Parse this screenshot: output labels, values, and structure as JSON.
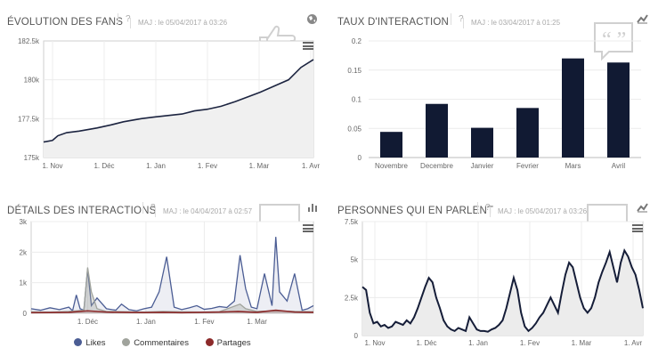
{
  "panels": {
    "fans": {
      "title": "ÉVOLUTION DES FANS",
      "help": "?",
      "maj": "MAJ : le 05/04/2017 à 03:26",
      "icon": "globe-icon"
    },
    "rate": {
      "title": "TAUX D'INTERACTION",
      "help": "?",
      "maj": "MAJ : le 03/04/2017 à 01:25",
      "icon": "trend-icon"
    },
    "details": {
      "title": "DÉTAILS DES INTERACTIONS",
      "help": "?",
      "maj": "MAJ : le 04/04/2017 à 02:57",
      "icon": "bar-chart-icon"
    },
    "talk": {
      "title": "PERSONNES QUI EN PARLENT",
      "help": "?",
      "maj": "MAJ : le 05/04/2017 à 03:26",
      "icon": "trend-icon"
    }
  },
  "legend": [
    {
      "label": "Likes",
      "color": "#4b5d94"
    },
    {
      "label": "Commentaires",
      "color": "#a0a39c"
    },
    {
      "label": "Partages",
      "color": "#8c2a2a"
    }
  ],
  "chart_data": [
    {
      "type": "area",
      "title": "ÉVOLUTION DES FANS",
      "x_ticks": [
        "1. Nov",
        "1. Déc",
        "1. Jan",
        "1. Fev",
        "1. Mar",
        "1. Avr"
      ],
      "y_ticks": [
        "175k",
        "177.5k",
        "180k",
        "182.5k"
      ],
      "ylim": [
        175000,
        182500
      ],
      "x": [
        0,
        5,
        8,
        13,
        20,
        30,
        38,
        45,
        55,
        62,
        70,
        78,
        85,
        92,
        100,
        108,
        115,
        122,
        130,
        138,
        145,
        152
      ],
      "values": [
        176000,
        176100,
        176400,
        176600,
        176700,
        176900,
        177100,
        177300,
        177500,
        177600,
        177700,
        177800,
        178000,
        178100,
        178300,
        178600,
        178900,
        179200,
        179600,
        180000,
        180800,
        181300
      ]
    },
    {
      "type": "bar",
      "title": "TAUX D'INTERACTION",
      "categories": [
        "Novembre",
        "Decembre",
        "Janvier",
        "Fevrier",
        "Mars",
        "Avril"
      ],
      "values": [
        0.044,
        0.092,
        0.051,
        0.085,
        0.17,
        0.163
      ],
      "y_ticks": [
        "0",
        "0.05",
        "0.1",
        "0.15",
        "0.2"
      ],
      "ylim": [
        0,
        0.2
      ],
      "color": "#111a33"
    },
    {
      "type": "line",
      "title": "DÉTAILS DES INTERACTIONS",
      "x_ticks": [
        "1. Déc",
        "1. Jan",
        "1. Fev",
        "1. Mar"
      ],
      "x_tick_days": [
        30,
        61,
        92,
        120
      ],
      "y_ticks": [
        "0",
        "1k",
        "2k",
        "3k"
      ],
      "ylim": [
        0,
        3000
      ],
      "series": [
        {
          "name": "Likes",
          "x": [
            0,
            5,
            10,
            15,
            20,
            22,
            24,
            26,
            28,
            30,
            32,
            35,
            40,
            45,
            48,
            52,
            56,
            60,
            64,
            68,
            72,
            76,
            80,
            84,
            88,
            92,
            96,
            100,
            104,
            108,
            111,
            114,
            117,
            120,
            124,
            128,
            130,
            132,
            136,
            140,
            144,
            147,
            150
          ],
          "values": [
            150,
            100,
            180,
            120,
            200,
            80,
            600,
            150,
            100,
            1450,
            250,
            500,
            150,
            100,
            300,
            120,
            80,
            150,
            200,
            700,
            1850,
            200,
            120,
            180,
            250,
            130,
            160,
            220,
            190,
            400,
            1900,
            800,
            200,
            150,
            1300,
            250,
            2500,
            700,
            400,
            1300,
            100,
            150,
            250
          ]
        },
        {
          "name": "Commentaires",
          "x": [
            0,
            10,
            20,
            24,
            28,
            30,
            32,
            35,
            40,
            50,
            60,
            70,
            80,
            90,
            100,
            111,
            114,
            120,
            130,
            140,
            150
          ],
          "values": [
            50,
            40,
            60,
            80,
            100,
            1500,
            700,
            150,
            60,
            50,
            40,
            60,
            50,
            40,
            50,
            300,
            150,
            60,
            80,
            60,
            50
          ]
        },
        {
          "name": "Partages",
          "x": [
            0,
            10,
            20,
            30,
            40,
            50,
            60,
            70,
            80,
            90,
            100,
            110,
            120,
            130,
            140,
            150
          ],
          "values": [
            20,
            25,
            30,
            80,
            40,
            30,
            25,
            30,
            20,
            30,
            40,
            60,
            30,
            100,
            40,
            30
          ]
        }
      ]
    },
    {
      "type": "area",
      "title": "PERSONNES QUI EN PARLENT",
      "x_ticks": [
        "1. Nov",
        "1. Déc",
        "1. Jan",
        "1. Fev",
        "1. Mar",
        "1. Avr"
      ],
      "y_ticks": [
        "0",
        "2.5k",
        "5k",
        "7.5k"
      ],
      "ylim": [
        0,
        7500
      ],
      "x": [
        0,
        2,
        4,
        6,
        8,
        10,
        12,
        14,
        16,
        18,
        20,
        22,
        24,
        26,
        28,
        30,
        32,
        34,
        36,
        38,
        40,
        42,
        44,
        46,
        48,
        50,
        52,
        54,
        56,
        58,
        60,
        62,
        64,
        66,
        68,
        70,
        72,
        74,
        76,
        78,
        80,
        82,
        84,
        86,
        88,
        90,
        92,
        94,
        96,
        98,
        100,
        102,
        104,
        106,
        108,
        110,
        112,
        114,
        116,
        118,
        120,
        122,
        124,
        126,
        128,
        130,
        132,
        134,
        136,
        138,
        140,
        142,
        144,
        146,
        148,
        150,
        152
      ],
      "values": [
        3200,
        3000,
        1500,
        800,
        900,
        600,
        700,
        500,
        600,
        900,
        800,
        700,
        1000,
        800,
        1200,
        1800,
        2500,
        3200,
        3800,
        3500,
        2500,
        1800,
        1000,
        600,
        400,
        300,
        500,
        400,
        300,
        1200,
        800,
        400,
        300,
        300,
        250,
        400,
        500,
        700,
        1000,
        1800,
        2800,
        3800,
        3000,
        1500,
        600,
        300,
        500,
        800,
        1200,
        1500,
        2000,
        2500,
        2000,
        1500,
        2800,
        4000,
        4800,
        4500,
        3500,
        2500,
        1800,
        1500,
        1800,
        2500,
        3500,
        4200,
        4800,
        5500,
        4500,
        3500,
        4800,
        5600,
        5200,
        4500,
        4000,
        3000,
        1800
      ]
    }
  ]
}
